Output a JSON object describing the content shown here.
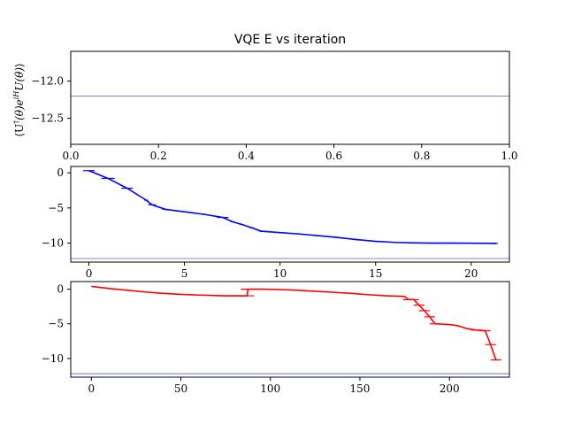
{
  "chart_data": [
    {
      "type": "line",
      "title": "VQE E vs iteration",
      "ylabel": "⟨U†(θ)e^{iH}U(θ)⟩",
      "xlabel": "",
      "xlim": [
        0.0,
        1.0
      ],
      "ylim": [
        -12.85,
        -11.6
      ],
      "xticks": [
        0.0,
        0.2,
        0.4,
        0.6,
        0.8,
        1.0
      ],
      "xtick_labels": [
        "0.0",
        "0.2",
        "0.4",
        "0.6",
        "0.8",
        "1.0"
      ],
      "yticks": [
        -12.0,
        -12.5
      ],
      "ytick_labels": [
        "−12.0",
        "−12.5"
      ],
      "reference_line": {
        "y": -12.2,
        "color": "#4a5fd0"
      },
      "series": [],
      "grid": false
    },
    {
      "type": "line",
      "xlim": [
        -0.95,
        22.0
      ],
      "ylim": [
        -12.7,
        0.9
      ],
      "xticks": [
        0,
        5,
        10,
        15,
        20
      ],
      "xtick_labels": [
        "0",
        "5",
        "10",
        "15",
        "20"
      ],
      "yticks": [
        0,
        -5,
        -10
      ],
      "ytick_labels": [
        "0",
        "−5",
        "−10"
      ],
      "reference_line": {
        "y": -12.2,
        "color": "#4a5fd0"
      },
      "series": [
        {
          "color": "#0000ff",
          "x": [
            0,
            1,
            2,
            3,
            3.3,
            4,
            5,
            6,
            7,
            7.5,
            8,
            8.5,
            9,
            10,
            11,
            12,
            13,
            14,
            15,
            16,
            17,
            18,
            19,
            20,
            21,
            21.3
          ],
          "y": [
            0.3,
            -0.8,
            -2.2,
            -3.9,
            -4.55,
            -5.2,
            -5.55,
            -5.9,
            -6.35,
            -6.95,
            -7.35,
            -7.8,
            -8.3,
            -8.5,
            -8.7,
            -8.95,
            -9.2,
            -9.5,
            -9.75,
            -9.9,
            -9.97,
            -10.0,
            -10.0,
            -10.02,
            -10.03,
            -10.05
          ],
          "error_x": [
            0.3,
            0.35,
            0.3,
            0.1,
            0.2,
            0.15,
            0.1,
            0.1,
            0.3,
            0.1,
            0.1,
            0.1,
            0.1,
            0.1,
            0.1,
            0.1,
            0.1,
            0.1,
            0.1,
            0.1,
            0.1,
            0.3,
            0.3,
            0.3,
            0.3,
            0.1
          ]
        }
      ],
      "grid": false
    },
    {
      "type": "line",
      "xlim": [
        -11.5,
        233.5
      ],
      "ylim": [
        -12.7,
        1.1
      ],
      "xticks": [
        0,
        50,
        100,
        150,
        200
      ],
      "xtick_labels": [
        "0",
        "50",
        "100",
        "150",
        "200"
      ],
      "yticks": [
        0,
        -5,
        -10
      ],
      "ytick_labels": [
        "0",
        "−5",
        "−10"
      ],
      "reference_line": {
        "y": -12.2,
        "color": "#4a5fd0"
      },
      "series": [
        {
          "color": "#ff0000",
          "x": [
            0,
            10,
            20,
            30,
            40,
            50,
            60,
            70,
            75,
            80,
            87,
            87.5,
            95,
            105,
            115,
            125,
            135,
            145,
            155,
            165,
            175,
            177,
            180,
            183,
            186,
            189,
            192,
            200,
            205,
            210,
            215,
            220,
            223,
            226
          ],
          "y": [
            0.4,
            0.1,
            -0.15,
            -0.4,
            -0.6,
            -0.75,
            -0.85,
            -0.92,
            -0.95,
            -0.95,
            -0.95,
            0.0,
            0.0,
            -0.05,
            -0.15,
            -0.3,
            -0.45,
            -0.6,
            -0.8,
            -0.95,
            -1.05,
            -1.5,
            -1.5,
            -2.3,
            -3.1,
            -4.0,
            -5.0,
            -5.1,
            -5.3,
            -5.7,
            -5.9,
            -6.0,
            -8.0,
            -10.2
          ],
          "error_x": [
            0,
            0,
            0,
            0,
            0,
            0,
            0,
            0,
            4,
            4,
            4,
            4,
            0,
            0,
            0,
            0,
            0,
            0,
            0,
            0,
            0,
            3,
            3,
            3,
            3,
            3,
            3,
            0,
            0,
            0,
            3,
            3,
            3,
            3
          ]
        }
      ],
      "grid": false
    }
  ]
}
